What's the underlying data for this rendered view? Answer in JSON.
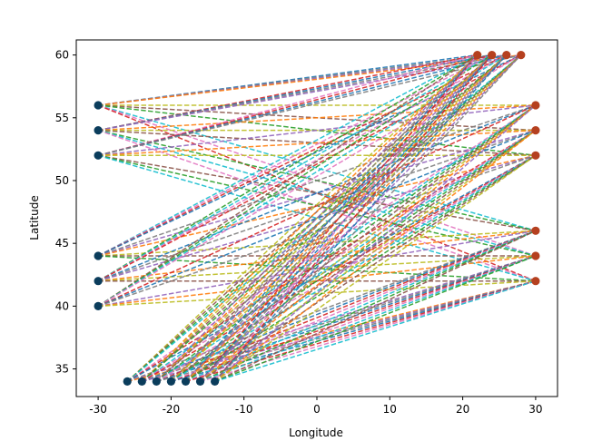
{
  "chart_data": {
    "type": "scatter",
    "title": "",
    "xlabel": "Longitude",
    "ylabel": "Latitude",
    "xlim": [
      -33,
      33
    ],
    "ylim": [
      32.8,
      61.2
    ],
    "grid": false,
    "legend": "none",
    "x_ticks": [
      "-30",
      "-20",
      "-10",
      "0",
      "10",
      "20",
      "30"
    ],
    "y_ticks": [
      "35",
      "40",
      "45",
      "50",
      "55",
      "60"
    ],
    "x_tick_values": [
      -30,
      -20,
      -10,
      0,
      10,
      20,
      30
    ],
    "y_tick_values": [
      35,
      40,
      45,
      50,
      55,
      60
    ],
    "origin_points": [
      {
        "x": -30,
        "y": 56
      },
      {
        "x": -30,
        "y": 54
      },
      {
        "x": -30,
        "y": 52
      },
      {
        "x": -30,
        "y": 44
      },
      {
        "x": -30,
        "y": 42
      },
      {
        "x": -30,
        "y": 40
      },
      {
        "x": -26,
        "y": 34
      },
      {
        "x": -24,
        "y": 34
      },
      {
        "x": -22,
        "y": 34
      },
      {
        "x": -20,
        "y": 34
      },
      {
        "x": -18,
        "y": 34
      },
      {
        "x": -16,
        "y": 34
      },
      {
        "x": -14,
        "y": 34
      }
    ],
    "destination_points": [
      {
        "x": 22,
        "y": 60
      },
      {
        "x": 24,
        "y": 60
      },
      {
        "x": 26,
        "y": 60
      },
      {
        "x": 28,
        "y": 60
      },
      {
        "x": 30,
        "y": 56
      },
      {
        "x": 30,
        "y": 54
      },
      {
        "x": 30,
        "y": 52
      },
      {
        "x": 30,
        "y": 46
      },
      {
        "x": 30,
        "y": 44
      },
      {
        "x": 30,
        "y": 42
      }
    ],
    "series": [
      {
        "name": "origins",
        "marker": "circle",
        "color": "#0b3d5c"
      },
      {
        "name": "destinations",
        "marker": "circle",
        "color": "#b5401f"
      },
      {
        "name": "routes",
        "style": "dashed",
        "description": "every origin connected to every destination"
      }
    ],
    "colors": {
      "origin_marker": "#0b3d5c",
      "destination_marker": "#b5401f",
      "line_cycle": [
        "#1f77b4",
        "#ff7f0e",
        "#2ca02c",
        "#d62728",
        "#9467bd",
        "#8c564b",
        "#e377c2",
        "#7f7f7f",
        "#bcbd22",
        "#17becf"
      ]
    }
  }
}
